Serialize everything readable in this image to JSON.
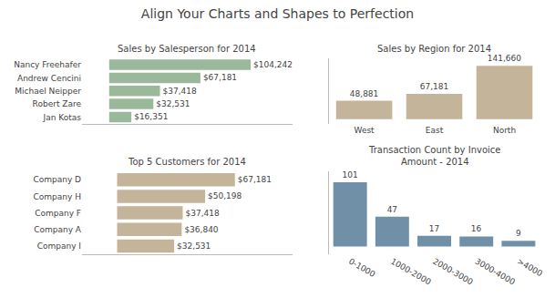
{
  "title": "Align Your Charts and Shapes to Perfection",
  "chart_data": [
    {
      "type": "bar",
      "title": "Sales by Salesperson for 2014",
      "orientation": "horizontal",
      "categories": [
        "Nancy Freehafer",
        "Andrew Cencini",
        "Michael Neipper",
        "Robert Zare",
        "Jan Kotas"
      ],
      "values": [
        104242,
        67181,
        37418,
        32531,
        16351
      ],
      "value_labels": [
        "$104,242",
        "$67,181",
        "$37,418",
        "$32,531",
        "$16,351"
      ],
      "color": "#9ab89a",
      "xlim": [
        -20000,
        135000
      ],
      "tick_labels": "y",
      "grid": false
    },
    {
      "type": "bar",
      "title": "Sales by Region for 2014",
      "categories": [
        "West",
        "East",
        "North"
      ],
      "values": [
        48881,
        67181,
        141660
      ],
      "value_labels": [
        "48,881",
        "67,181",
        "141,660"
      ],
      "color": "#c4b49a",
      "ylim": [
        -12000,
        162000
      ],
      "tick_labels": "x",
      "grid": false
    },
    {
      "type": "bar",
      "title": "Top 5 Customers for 2014",
      "orientation": "horizontal",
      "categories": [
        "Company D",
        "Company H",
        "Company F",
        "Company A",
        "Company I"
      ],
      "values": [
        67181,
        50198,
        37418,
        36840,
        32531
      ],
      "value_labels": [
        "$67,181",
        "$50,198",
        "$37,418",
        "$36,840",
        "$32,531"
      ],
      "color": "#c4b49a",
      "xlim": [
        -20000,
        100000
      ],
      "tick_labels": "y",
      "grid": false
    },
    {
      "type": "bar",
      "title": "Transaction Count by Invoice\nAmount - 2014",
      "categories": [
        "0-1000",
        "1000-2000",
        "2000-3000",
        "3000-4000",
        ">4000"
      ],
      "values": [
        101,
        47,
        17,
        16,
        9
      ],
      "data_labels": true,
      "color": "#7090a8",
      "ylim": [
        -12,
        118
      ],
      "tick_labels": "x",
      "grid": false
    }
  ]
}
